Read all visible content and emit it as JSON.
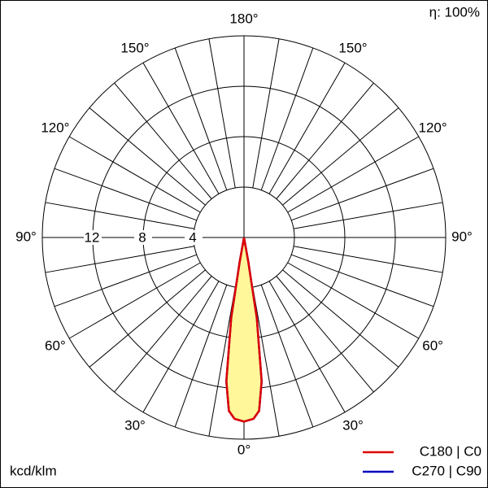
{
  "chart_data": {
    "type": "polar",
    "unit_label": "kcd/klm",
    "efficiency": "η: 100%",
    "rlim": [
      0,
      16
    ],
    "rticks": [
      4,
      8,
      12
    ],
    "angle_ticks": [
      {
        "value": 0,
        "label": "0°"
      },
      {
        "value": 30,
        "label": "30°"
      },
      {
        "value": 60,
        "label": "60°"
      },
      {
        "value": 90,
        "label": "90°"
      },
      {
        "value": 120,
        "label": "120°"
      },
      {
        "value": 150,
        "label": "150°"
      },
      {
        "value": 180,
        "label": "180°"
      }
    ],
    "x": [
      -12,
      -10,
      -9,
      -7,
      -5,
      -3,
      0,
      3,
      5,
      7,
      9,
      10,
      12
    ],
    "series": [
      {
        "name": "C180 | C0",
        "color": "#e00000",
        "values": [
          0,
          2,
          6.5,
          11.5,
          13.8,
          14.4,
          14.6,
          14.4,
          13.8,
          11.5,
          6.5,
          2,
          0
        ]
      },
      {
        "name": "C270 | C90",
        "color": "#0000c0",
        "values": [
          0,
          2,
          6.5,
          11.5,
          13.8,
          14.4,
          14.6,
          14.4,
          13.8,
          11.5,
          6.5,
          2,
          0
        ]
      }
    ],
    "fill": "#fff799"
  }
}
